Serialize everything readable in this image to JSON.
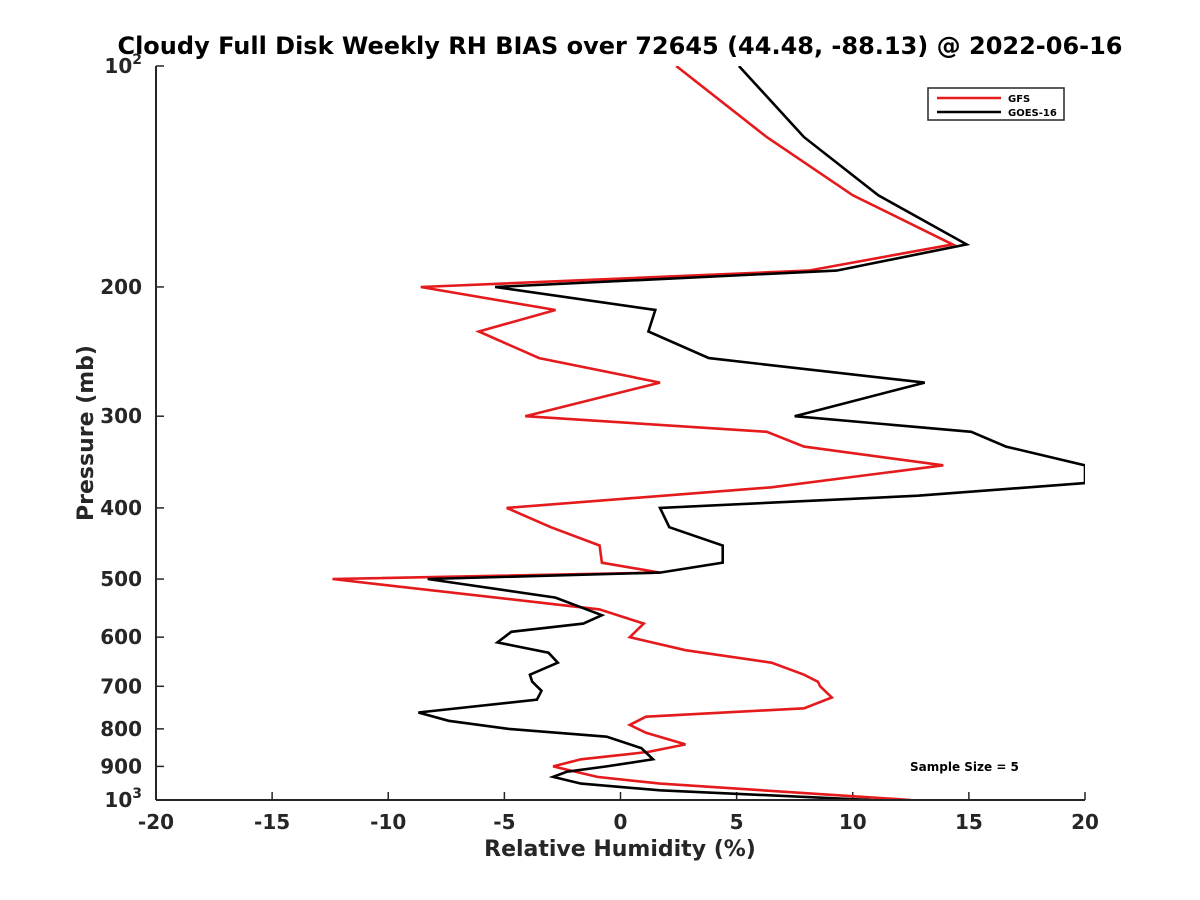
{
  "chart_data": {
    "type": "line",
    "title": "Cloudy Full Disk Weekly RH BIAS over 72645 (44.48, -88.13) @ 2022-06-16",
    "xlabel": "Relative Humidity (%)",
    "ylabel": "Pressure (mb)",
    "xlim": [
      -20,
      20
    ],
    "ylim": [
      100,
      1000
    ],
    "y_scale": "log",
    "y_reversed": true,
    "grid": false,
    "legend_position": "top-right",
    "x_ticks": [
      -20,
      -15,
      -10,
      -5,
      0,
      5,
      10,
      15,
      20
    ],
    "x_tick_labels": [
      "-20",
      "-15",
      "-10",
      "-5",
      "0",
      "5",
      "10",
      "15",
      "20"
    ],
    "y_ticks": [
      {
        "value": 100,
        "base": "10",
        "exp": "2"
      },
      {
        "value": 200,
        "label": "200"
      },
      {
        "value": 300,
        "label": "300"
      },
      {
        "value": 400,
        "label": "400"
      },
      {
        "value": 500,
        "label": "500"
      },
      {
        "value": 600,
        "label": "600"
      },
      {
        "value": 700,
        "label": "700"
      },
      {
        "value": 800,
        "label": "800"
      },
      {
        "value": 900,
        "label": "900"
      },
      {
        "value": 1000,
        "base": "10",
        "exp": "3"
      }
    ],
    "series": [
      {
        "name": "GFS",
        "color": "#e41a1c",
        "points": [
          [
            2.4,
            100
          ],
          [
            6.3,
            125
          ],
          [
            10.0,
            150
          ],
          [
            14.3,
            175
          ],
          [
            8.1,
            190
          ],
          [
            -8.6,
            200
          ],
          [
            -2.8,
            215
          ],
          [
            -6.1,
            230
          ],
          [
            -3.5,
            250
          ],
          [
            1.7,
            270
          ],
          [
            -4.1,
            300
          ],
          [
            6.3,
            315
          ],
          [
            7.9,
            330
          ],
          [
            13.9,
            350
          ],
          [
            6.5,
            375
          ],
          [
            -4.9,
            400
          ],
          [
            -3.0,
            425
          ],
          [
            -0.9,
            450
          ],
          [
            -0.8,
            475
          ],
          [
            1.7,
            490
          ],
          [
            -12.4,
            500
          ],
          [
            -0.9,
            550
          ],
          [
            1.0,
            575
          ],
          [
            0.4,
            600
          ],
          [
            2.8,
            625
          ],
          [
            6.5,
            650
          ],
          [
            7.9,
            675
          ],
          [
            8.5,
            690
          ],
          [
            8.6,
            700
          ],
          [
            9.1,
            725
          ],
          [
            7.9,
            750
          ],
          [
            1.1,
            770
          ],
          [
            0.4,
            790
          ],
          [
            1.1,
            810
          ],
          [
            2.8,
            840
          ],
          [
            1.2,
            860
          ],
          [
            -1.7,
            880
          ],
          [
            -2.9,
            900
          ],
          [
            -1.0,
            930
          ],
          [
            1.7,
            950
          ],
          [
            12.5,
            1000
          ]
        ]
      },
      {
        "name": "GOES-16",
        "color": "#000000",
        "points": [
          [
            5.1,
            100
          ],
          [
            7.9,
            125
          ],
          [
            11.1,
            150
          ],
          [
            14.9,
            175
          ],
          [
            9.3,
            190
          ],
          [
            -5.4,
            200
          ],
          [
            1.5,
            215
          ],
          [
            1.2,
            230
          ],
          [
            3.8,
            250
          ],
          [
            13.1,
            270
          ],
          [
            7.5,
            300
          ],
          [
            15.1,
            315
          ],
          [
            16.6,
            330
          ],
          [
            20.0,
            350
          ],
          [
            20.0,
            370
          ],
          [
            12.8,
            385
          ],
          [
            1.7,
            400
          ],
          [
            2.1,
            425
          ],
          [
            4.4,
            450
          ],
          [
            4.4,
            475
          ],
          [
            1.7,
            490
          ],
          [
            -8.3,
            500
          ],
          [
            -2.8,
            530
          ],
          [
            -0.8,
            560
          ],
          [
            -1.6,
            575
          ],
          [
            -4.7,
            590
          ],
          [
            -5.3,
            610
          ],
          [
            -3.1,
            630
          ],
          [
            -2.7,
            650
          ],
          [
            -3.9,
            675
          ],
          [
            -3.8,
            690
          ],
          [
            -3.4,
            710
          ],
          [
            -3.6,
            730
          ],
          [
            -8.7,
            760
          ],
          [
            -7.4,
            780
          ],
          [
            -4.8,
            800
          ],
          [
            -0.6,
            820
          ],
          [
            0.9,
            850
          ],
          [
            1.4,
            880
          ],
          [
            -0.6,
            900
          ],
          [
            -2.3,
            915
          ],
          [
            -2.9,
            930
          ],
          [
            -1.7,
            950
          ],
          [
            1.7,
            970
          ],
          [
            10.8,
            1000
          ]
        ]
      }
    ],
    "annotation": "Sample Size = 5"
  }
}
